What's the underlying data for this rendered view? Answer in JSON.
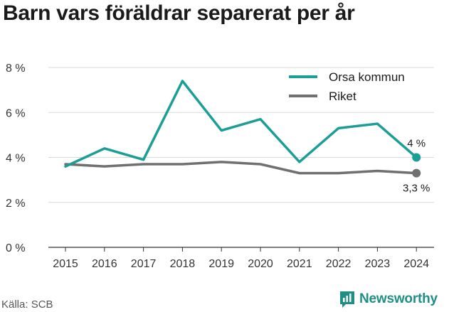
{
  "title": "Barn vars föräldrar separerat per år",
  "source": "Källa: SCB",
  "brand": {
    "name": "Newsworthy"
  },
  "colors": {
    "orsa": "#1a9e96",
    "riket": "#707070",
    "grid": "#d9d9d9"
  },
  "chart_data": {
    "type": "line",
    "title": "Barn vars föräldrar separerat per år",
    "x": [
      "2015",
      "2016",
      "2017",
      "2018",
      "2019",
      "2020",
      "2021",
      "2022",
      "2023",
      "2024"
    ],
    "series": [
      {
        "name": "Orsa kommun",
        "values": [
          3.6,
          4.4,
          3.9,
          7.4,
          5.2,
          5.7,
          3.8,
          5.3,
          5.5,
          4.0
        ],
        "end_label": "4 %"
      },
      {
        "name": "Riket",
        "values": [
          3.7,
          3.6,
          3.7,
          3.7,
          3.8,
          3.7,
          3.3,
          3.3,
          3.4,
          3.3
        ],
        "end_label": "3,3 %"
      }
    ],
    "y_ticks": [
      0,
      2,
      4,
      6,
      8
    ],
    "y_tick_labels": [
      "0 %",
      "2 %",
      "4 %",
      "6 %",
      "8 %"
    ],
    "ylim": [
      0,
      8
    ],
    "grid": true,
    "legend": "top-right"
  }
}
